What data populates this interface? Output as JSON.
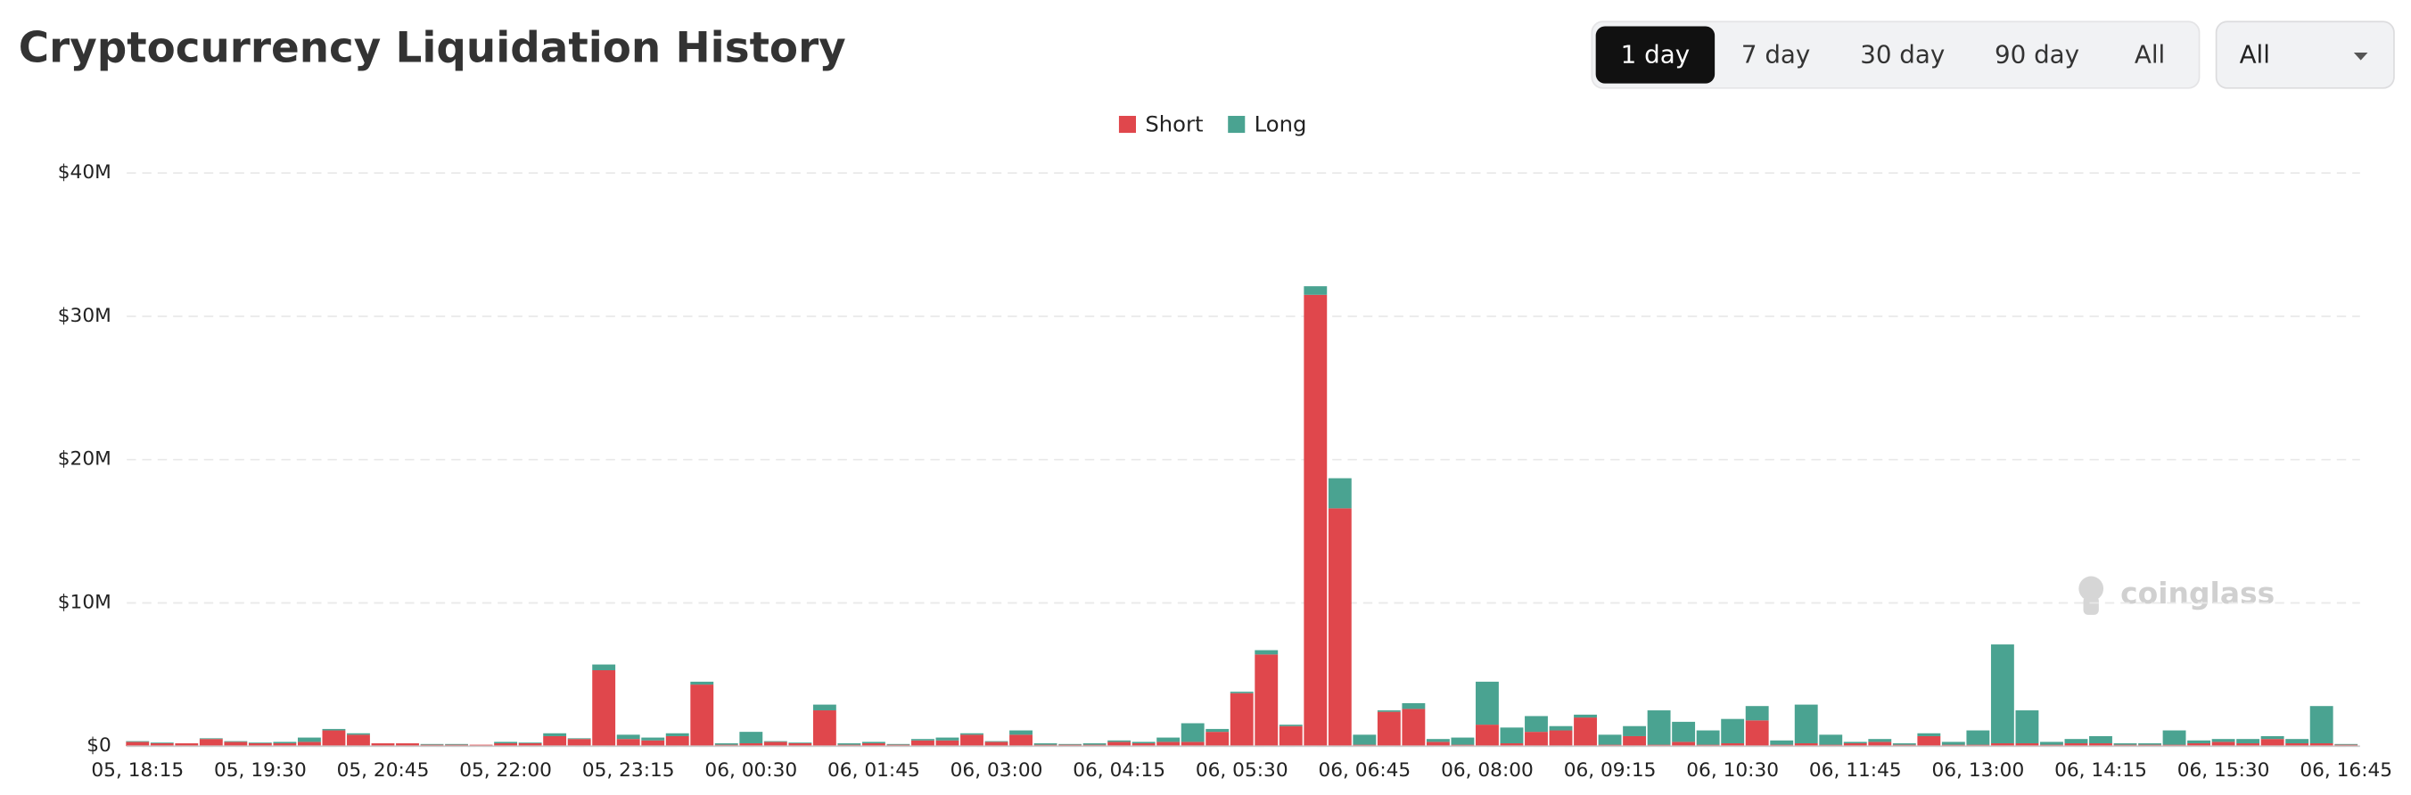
{
  "chart_data": {
    "type": "stacked-bar",
    "title": "Cryptocurrency Liquidation History",
    "categories": [
      "05, 18:15",
      null,
      null,
      null,
      null,
      "05, 19:30",
      null,
      null,
      null,
      null,
      "05, 20:45",
      null,
      null,
      null,
      null,
      "05, 22:00",
      null,
      null,
      null,
      null,
      "05, 23:15",
      null,
      null,
      null,
      null,
      "06, 00:30",
      null,
      null,
      null,
      null,
      "06, 01:45",
      null,
      null,
      null,
      null,
      "06, 03:00",
      null,
      null,
      null,
      null,
      "06, 04:15",
      null,
      null,
      null,
      null,
      "06, 05:30",
      null,
      null,
      null,
      null,
      "06, 06:45",
      null,
      null,
      null,
      null,
      "06, 08:00",
      null,
      null,
      null,
      null,
      "06, 09:15",
      null,
      null,
      null,
      null,
      "06, 10:30",
      null,
      null,
      null,
      null,
      "06, 11:45",
      null,
      null,
      null,
      null,
      "06, 13:00",
      null,
      null,
      null,
      null,
      "06, 14:15",
      null,
      null,
      null,
      null,
      "06, 15:30",
      null,
      null,
      null,
      null,
      "06, 16:45"
    ],
    "series": [
      {
        "name": "Short",
        "color": "#e0474c",
        "values": [
          0.3,
          0.2,
          0.2,
          0.5,
          0.3,
          0.2,
          0.2,
          0.3,
          1.1,
          0.8,
          0.2,
          0.2,
          0.1,
          0.1,
          0.1,
          0.2,
          0.2,
          0.7,
          0.5,
          5.3,
          0.5,
          0.4,
          0.7,
          4.3,
          0.1,
          0.2,
          0.3,
          0.2,
          2.5,
          0.1,
          0.2,
          0.1,
          0.4,
          0.4,
          0.8,
          0.3,
          0.8,
          0.1,
          0.1,
          0.1,
          0.3,
          0.2,
          0.3,
          0.3,
          1.0,
          3.7,
          6.4,
          1.4,
          31.5,
          16.6,
          0.1,
          2.4,
          2.6,
          0.3,
          0.1,
          1.5,
          0.2,
          1.0,
          1.1,
          2.0,
          0.1,
          0.7,
          0.1,
          0.3,
          0.1,
          0.2,
          1.8,
          0.1,
          0.2,
          0.1,
          0.2,
          0.3,
          0.1,
          0.7,
          0.1,
          0.1,
          0.2,
          0.2,
          0.1,
          0.2,
          0.2,
          0.1,
          0.1,
          0.1,
          0.2,
          0.3,
          0.2,
          0.5,
          0.2,
          0.2,
          0.1
        ]
      },
      {
        "name": "Long",
        "color": "#4aa391",
        "values": [
          0.05,
          0.05,
          0,
          0.05,
          0.05,
          0.05,
          0.1,
          0.3,
          0.1,
          0.1,
          0,
          0,
          0.05,
          0.05,
          0,
          0.1,
          0.05,
          0.2,
          0.05,
          0.4,
          0.3,
          0.2,
          0.2,
          0.2,
          0.1,
          0.8,
          0.05,
          0.05,
          0.4,
          0.1,
          0.1,
          0.05,
          0.1,
          0.2,
          0.1,
          0.05,
          0.3,
          0.1,
          0.05,
          0.1,
          0.1,
          0.1,
          0.3,
          1.3,
          0.2,
          0.1,
          0.3,
          0.1,
          0.6,
          2.1,
          0.7,
          0.1,
          0.4,
          0.2,
          0.5,
          3.0,
          1.1,
          1.1,
          0.3,
          0.2,
          0.7,
          0.7,
          2.4,
          1.4,
          1.0,
          1.7,
          1.0,
          0.3,
          2.7,
          0.7,
          0.1,
          0.2,
          0.1,
          0.2,
          0.2,
          1.0,
          6.9,
          2.3,
          0.2,
          0.3,
          0.5,
          0.1,
          0.1,
          1.0,
          0.2,
          0.2,
          0.3,
          0.2,
          0.3,
          2.6,
          0.05
        ]
      }
    ],
    "ylim": [
      0,
      40
    ],
    "yticks": [
      {
        "value": 0,
        "label": "$0"
      },
      {
        "value": 10,
        "label": "$10M"
      },
      {
        "value": 20,
        "label": "$20M"
      },
      {
        "value": 30,
        "label": "$30M"
      },
      {
        "value": 40,
        "label": "$40M"
      }
    ],
    "grid": true,
    "legend": "top"
  },
  "controls": {
    "ranges": [
      "1 day",
      "7 day",
      "30 day",
      "90 day",
      "All"
    ],
    "active_range": 0,
    "dropdown": "All"
  },
  "watermark": "coinglass"
}
